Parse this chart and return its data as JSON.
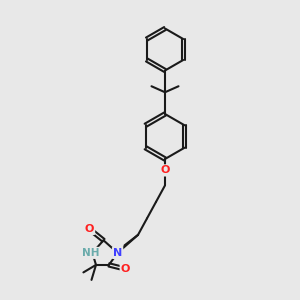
{
  "background_color": "#e8e8e8",
  "title": "",
  "figsize": [
    3.0,
    3.0
  ],
  "dpi": 100,
  "bond_color": "#1a1a1a",
  "bond_width": 1.5,
  "atom_colors": {
    "N": "#4040ff",
    "O": "#ff2020",
    "H": "#6aabab",
    "C": "#1a1a1a"
  },
  "font_size": 7.5
}
